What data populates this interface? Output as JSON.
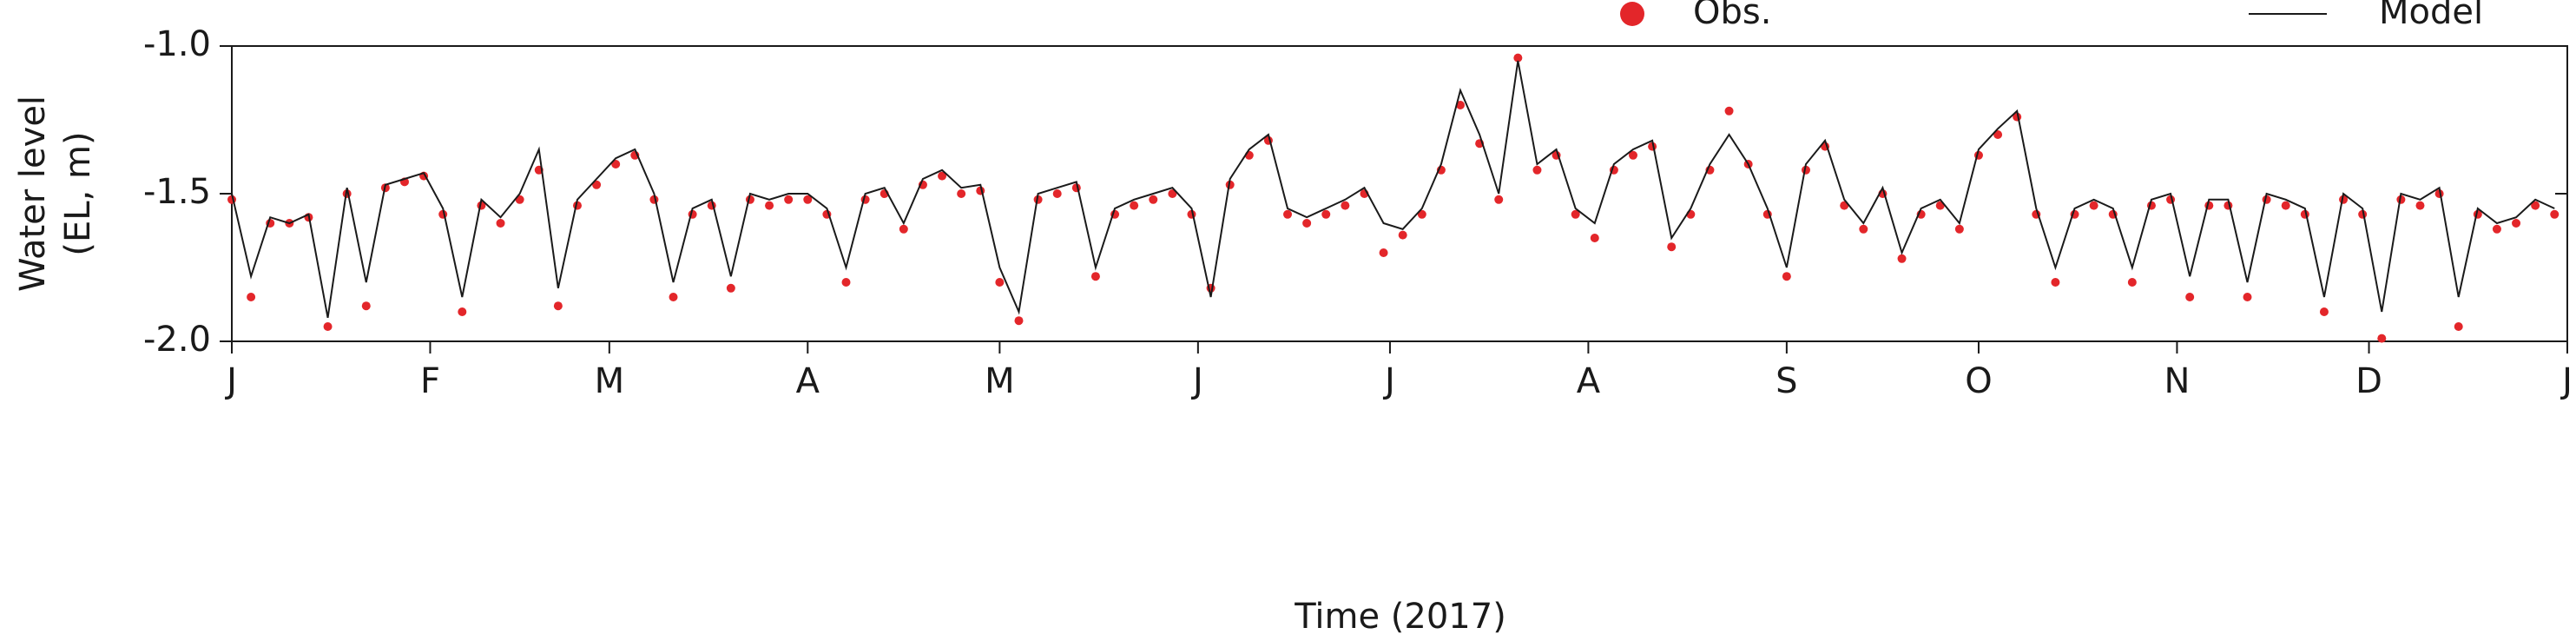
{
  "chart_data": {
    "type": "line",
    "xlabel": "Time (2017)",
    "ylabel": [
      "Water level",
      "(EL, m)"
    ],
    "xlim": [
      0,
      365
    ],
    "xticks": [
      {
        "value": 0,
        "label": "J"
      },
      {
        "value": 31,
        "label": "F"
      },
      {
        "value": 59,
        "label": "M"
      },
      {
        "value": 90,
        "label": "A"
      },
      {
        "value": 120,
        "label": "M"
      },
      {
        "value": 151,
        "label": "J"
      },
      {
        "value": 181,
        "label": "J"
      },
      {
        "value": 212,
        "label": "A"
      },
      {
        "value": 243,
        "label": "S"
      },
      {
        "value": 273,
        "label": "O"
      },
      {
        "value": 304,
        "label": "N"
      },
      {
        "value": 334,
        "label": "D"
      },
      {
        "value": 365,
        "label": "J"
      }
    ],
    "ylim": [
      -2.0,
      -1.0
    ],
    "yticks": [
      {
        "value": -1.0,
        "label": "-1.0"
      },
      -1.5,
      {
        "value": -2.0,
        "label": "-2.0"
      }
    ],
    "legend": "top-right",
    "x": [
      0,
      3,
      6,
      9,
      12,
      15,
      18,
      21,
      24,
      27,
      30,
      33,
      36,
      39,
      42,
      45,
      48,
      51,
      54,
      57,
      60,
      63,
      66,
      69,
      72,
      75,
      78,
      81,
      84,
      87,
      90,
      93,
      96,
      99,
      102,
      105,
      108,
      111,
      114,
      117,
      120,
      123,
      126,
      129,
      132,
      135,
      138,
      141,
      144,
      147,
      150,
      153,
      156,
      159,
      162,
      165,
      168,
      171,
      174,
      177,
      180,
      183,
      186,
      189,
      192,
      195,
      198,
      201,
      204,
      207,
      210,
      213,
      216,
      219,
      222,
      225,
      228,
      231,
      234,
      237,
      240,
      243,
      246,
      249,
      252,
      255,
      258,
      261,
      264,
      267,
      270,
      273,
      276,
      279,
      282,
      285,
      288,
      291,
      294,
      297,
      300,
      303,
      306,
      309,
      312,
      315,
      318,
      321,
      324,
      327,
      330,
      333,
      336,
      339,
      342,
      345,
      348,
      351,
      354,
      357,
      360,
      363
    ],
    "series": [
      {
        "name": "Obs.",
        "color": "#e3262a",
        "kind": "scatter",
        "values": [
          -1.52,
          -1.85,
          -1.6,
          -1.6,
          -1.58,
          -1.95,
          -1.5,
          -1.88,
          -1.48,
          -1.46,
          -1.44,
          -1.57,
          -1.9,
          -1.54,
          -1.6,
          -1.52,
          -1.42,
          -1.88,
          -1.54,
          -1.47,
          -1.4,
          -1.37,
          -1.52,
          -1.85,
          -1.57,
          -1.54,
          -1.82,
          -1.52,
          -1.54,
          -1.52,
          -1.52,
          -1.57,
          -1.8,
          -1.52,
          -1.5,
          -1.62,
          -1.47,
          -1.44,
          -1.5,
          -1.49,
          -1.8,
          -1.93,
          -1.52,
          -1.5,
          -1.48,
          -1.78,
          -1.57,
          -1.54,
          -1.52,
          -1.5,
          -1.57,
          -1.82,
          -1.47,
          -1.37,
          -1.32,
          -1.57,
          -1.6,
          -1.57,
          -1.54,
          -1.5,
          -1.7,
          -1.64,
          -1.57,
          -1.42,
          -1.2,
          -1.33,
          -1.52,
          -1.04,
          -1.42,
          -1.37,
          -1.57,
          -1.65,
          -1.42,
          -1.37,
          -1.34,
          -1.68,
          -1.57,
          -1.42,
          -1.22,
          -1.4,
          -1.57,
          -1.78,
          -1.42,
          -1.34,
          -1.54,
          -1.62,
          -1.5,
          -1.72,
          -1.57,
          -1.54,
          -1.62,
          -1.37,
          -1.3,
          -1.24,
          -1.57,
          -1.8,
          -1.57,
          -1.54,
          -1.57,
          -1.8,
          -1.54,
          -1.52,
          -1.85,
          -1.54,
          -1.54,
          -1.85,
          -1.52,
          -1.54,
          -1.57,
          -1.9,
          -1.52,
          -1.57,
          -1.99,
          -1.52,
          -1.54,
          -1.5,
          -1.95,
          -1.57,
          -1.62,
          -1.6,
          -1.54,
          -1.57
        ]
      },
      {
        "name": "Model",
        "color": "#1a1a1a",
        "kind": "line",
        "values": [
          -1.5,
          -1.78,
          -1.58,
          -1.6,
          -1.57,
          -1.92,
          -1.48,
          -1.8,
          -1.47,
          -1.45,
          -1.43,
          -1.55,
          -1.85,
          -1.52,
          -1.58,
          -1.5,
          -1.35,
          -1.82,
          -1.52,
          -1.45,
          -1.38,
          -1.35,
          -1.5,
          -1.8,
          -1.55,
          -1.52,
          -1.78,
          -1.5,
          -1.52,
          -1.5,
          -1.5,
          -1.55,
          -1.75,
          -1.5,
          -1.48,
          -1.6,
          -1.45,
          -1.42,
          -1.48,
          -1.47,
          -1.75,
          -1.9,
          -1.5,
          -1.48,
          -1.46,
          -1.75,
          -1.55,
          -1.52,
          -1.5,
          -1.48,
          -1.55,
          -1.85,
          -1.45,
          -1.35,
          -1.3,
          -1.55,
          -1.58,
          -1.55,
          -1.52,
          -1.48,
          -1.6,
          -1.62,
          -1.55,
          -1.4,
          -1.15,
          -1.3,
          -1.5,
          -1.05,
          -1.4,
          -1.35,
          -1.55,
          -1.6,
          -1.4,
          -1.35,
          -1.32,
          -1.65,
          -1.55,
          -1.4,
          -1.3,
          -1.4,
          -1.55,
          -1.75,
          -1.4,
          -1.32,
          -1.52,
          -1.6,
          -1.48,
          -1.7,
          -1.55,
          -1.52,
          -1.6,
          -1.35,
          -1.28,
          -1.22,
          -1.55,
          -1.75,
          -1.55,
          -1.52,
          -1.55,
          -1.75,
          -1.52,
          -1.5,
          -1.78,
          -1.52,
          -1.52,
          -1.8,
          -1.5,
          -1.52,
          -1.55,
          -1.85,
          -1.5,
          -1.55,
          -1.9,
          -1.5,
          -1.52,
          -1.48,
          -1.85,
          -1.55,
          -1.6,
          -1.58,
          -1.52,
          -1.55
        ]
      }
    ]
  }
}
